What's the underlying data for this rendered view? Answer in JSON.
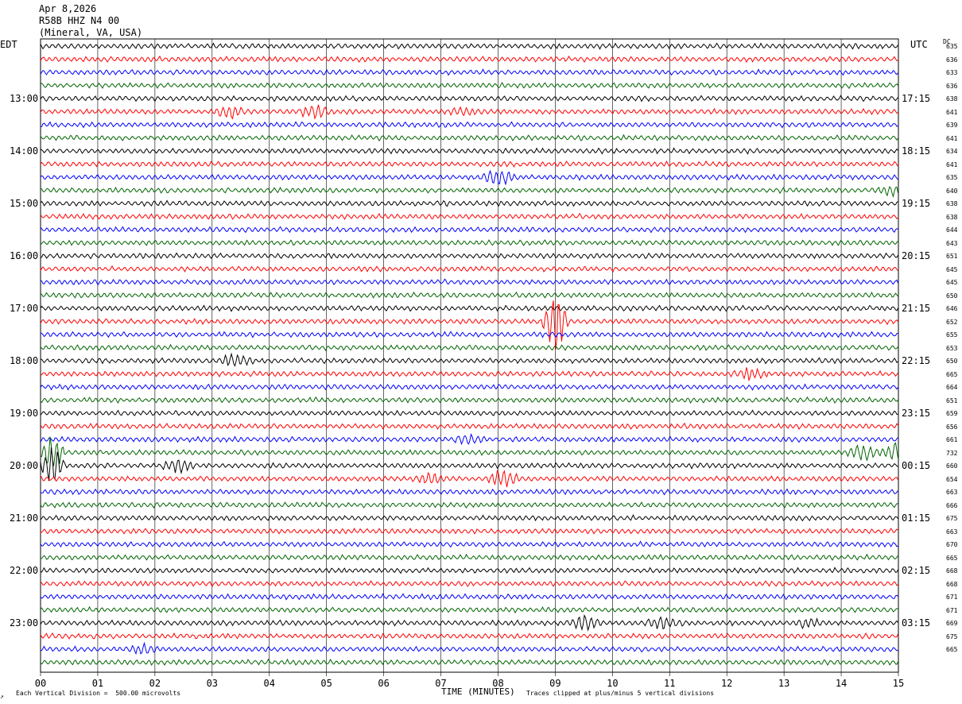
{
  "header": {
    "date": "Apr 8,2026",
    "station": "R58B HHZ N4 00",
    "location": "(Mineral, VA, USA)"
  },
  "axes": {
    "left_tz": "EDT",
    "right_tz": "UTC",
    "dc_label": "DC",
    "x_title": "TIME (MINUTES)"
  },
  "footer": {
    "scale_note": "Each Vertical Division =  500.00 microvolts",
    "clip_note": "Traces clipped at plus/minus 5 vertical divisions",
    "corner_mark": "↗"
  },
  "chart_data": {
    "type": "line",
    "xlabel": "TIME (MINUTES)",
    "x_range": [
      0,
      15
    ],
    "x_ticks": [
      "00",
      "01",
      "02",
      "03",
      "04",
      "05",
      "06",
      "07",
      "08",
      "09",
      "10",
      "11",
      "12",
      "13",
      "14",
      "15"
    ],
    "trace_minutes": 15,
    "trace_count": 48,
    "trace_colors": [
      "#000000",
      "#ff0000",
      "#0000ff",
      "#006400"
    ],
    "left_hour_labels": [
      "13:00",
      "14:00",
      "15:00",
      "16:00",
      "17:00",
      "18:00",
      "19:00",
      "20:00",
      "21:00",
      "22:00",
      "23:00"
    ],
    "right_hour_labels": [
      "17:15",
      "18:15",
      "19:15",
      "20:15",
      "21:15",
      "22:15",
      "23:15",
      "00:15",
      "01:15",
      "02:15",
      "03:15"
    ],
    "hour_label_first_trace": 4,
    "traces_per_hour": 4,
    "dc_values": [
      "635",
      "636",
      "633",
      "636",
      "638",
      "641",
      "639",
      "641",
      "634",
      "641",
      "635",
      "640",
      "638",
      "638",
      "644",
      "643",
      "651",
      "645",
      "645",
      "650",
      "646",
      "652",
      "655",
      "653",
      "650",
      "665",
      "664",
      "651",
      "659",
      "656",
      "661",
      "732",
      "660",
      "654",
      "663",
      "666",
      "675",
      "663",
      "670",
      "665",
      "668",
      "668",
      "671",
      "671",
      "669",
      "675",
      "665"
    ],
    "events": [
      {
        "trace": 5,
        "minute": 3.3,
        "amp": 2.2
      },
      {
        "trace": 5,
        "minute": 4.8,
        "amp": 2.4
      },
      {
        "trace": 5,
        "minute": 7.4,
        "amp": 1.4
      },
      {
        "trace": 10,
        "minute": 8.0,
        "amp": 3.0
      },
      {
        "trace": 11,
        "minute": 14.9,
        "amp": 1.5
      },
      {
        "trace": 21,
        "minute": 9.0,
        "amp": 12.0
      },
      {
        "trace": 24,
        "minute": 3.4,
        "amp": 2.0
      },
      {
        "trace": 25,
        "minute": 12.4,
        "amp": 1.6
      },
      {
        "trace": 30,
        "minute": 7.5,
        "amp": 1.5
      },
      {
        "trace": 31,
        "minute": 14.4,
        "amp": 3.0
      },
      {
        "trace": 31,
        "minute": 15.0,
        "amp": 3.5
      },
      {
        "trace": 31,
        "minute": 0.2,
        "amp": 8.0
      },
      {
        "trace": 32,
        "minute": 0.2,
        "amp": 8.0
      },
      {
        "trace": 32,
        "minute": 2.4,
        "amp": 2.0
      },
      {
        "trace": 33,
        "minute": 8.1,
        "amp": 3.0
      },
      {
        "trace": 33,
        "minute": 6.8,
        "amp": 1.8
      },
      {
        "trace": 44,
        "minute": 9.5,
        "amp": 2.5
      },
      {
        "trace": 44,
        "minute": 10.9,
        "amp": 2.2
      },
      {
        "trace": 44,
        "minute": 13.4,
        "amp": 1.5
      },
      {
        "trace": 46,
        "minute": 1.8,
        "amp": 1.4
      }
    ]
  }
}
